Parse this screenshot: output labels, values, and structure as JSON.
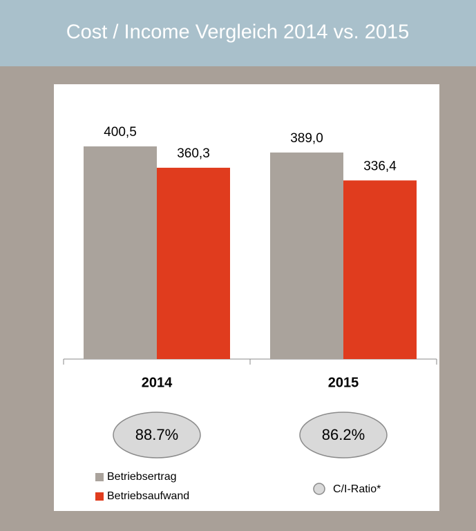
{
  "chart_data": {
    "type": "bar",
    "title": "Cost / Income Vergleich 2014 vs. 2015",
    "categories": [
      "2014",
      "2015"
    ],
    "series": [
      {
        "name": "Betriebsertrag",
        "color": "#aaa39c",
        "values": [
          400.5,
          389.0
        ],
        "value_labels": [
          "400,5",
          "389,0"
        ]
      },
      {
        "name": "Betriebsaufwand",
        "color": "#e03c1e",
        "values": [
          360.3,
          336.4
        ],
        "value_labels": [
          "360,3",
          "336,4"
        ]
      }
    ],
    "ratio": {
      "name": "C/I-Ratio*",
      "color": "#d9d9d9",
      "values": [
        88.7,
        86.2
      ],
      "value_labels": [
        "88.7%",
        "86.2%"
      ]
    }
  }
}
